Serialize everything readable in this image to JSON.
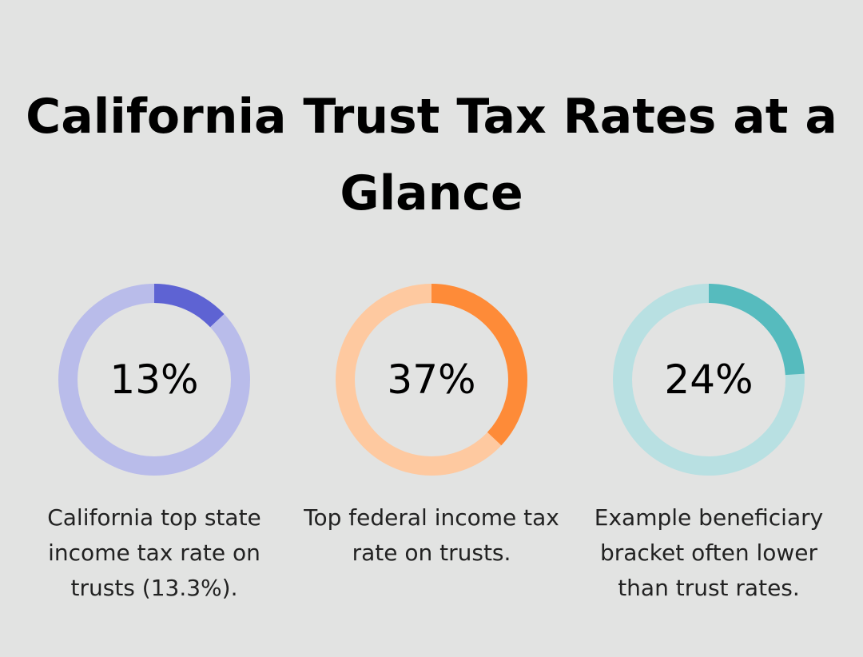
{
  "title": "California Trust Tax Rates at a Glance",
  "chart_data": [
    {
      "type": "pie",
      "value": 13,
      "label": "13%",
      "caption": "California top state income tax rate on trusts (13.3%).",
      "colors": {
        "track": "#b9bcea",
        "fill": "#5e63d3"
      }
    },
    {
      "type": "pie",
      "value": 37,
      "label": "37%",
      "caption": "Top federal income tax rate on trusts.",
      "colors": {
        "track": "#fec9a0",
        "fill": "#fe8b38"
      }
    },
    {
      "type": "pie",
      "value": 24,
      "label": "24%",
      "caption": "Example beneficiary bracket often lower than trust rates.",
      "colors": {
        "track": "#b8e0e2",
        "fill": "#56bbbe"
      }
    }
  ]
}
